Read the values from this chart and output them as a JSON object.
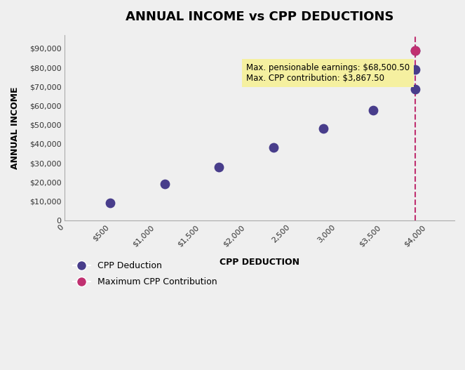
{
  "title": "ANNUAL INCOME vs CPP DEDUCTIONS",
  "xlabel": "CPP DEDUCTION",
  "ylabel": "ANNUAL INCOME",
  "background_color": "#efefef",
  "normal_x": [
    500,
    1100,
    1700,
    2300,
    2850,
    3400
  ],
  "normal_y": [
    9000,
    19000,
    28000,
    38000,
    48000,
    57500
  ],
  "max_line_x": [
    3867.5,
    3867.5,
    3867.5
  ],
  "max_line_y": [
    68500,
    79000,
    89000
  ],
  "max_pink_x": [
    3867.5
  ],
  "max_pink_y": [
    89000
  ],
  "max_contribution_x": 3867.5,
  "annotation_text_line1": "Max. pensionable earnings: $68,500.50",
  "annotation_text_line2": "Max. CPP contribution: $3,867.50",
  "annotation_box_color": "#f5f0a0",
  "dot_color": "#483d8b",
  "max_dot_color": "#c03070",
  "dashed_line_color": "#c03070",
  "xlim": [
    0,
    4300
  ],
  "ylim": [
    0,
    97000
  ],
  "xticks": [
    0,
    500,
    1000,
    1500,
    2000,
    2500,
    3000,
    3500,
    4000
  ],
  "xtick_labels": [
    "0",
    "$500",
    "$1,000",
    "$1,500",
    "$2,000",
    "2,500",
    "3,000",
    "$3,500",
    "$4,000"
  ],
  "yticks": [
    0,
    10000,
    20000,
    30000,
    40000,
    50000,
    60000,
    70000,
    80000,
    90000
  ],
  "ytick_labels": [
    "0",
    "$10,000",
    "$20,000",
    "$30,000",
    "$40,000",
    "$50,000",
    "$60,000",
    "$70,000",
    "$80,000",
    "$90,000"
  ],
  "legend_label_dot": "CPP Deduction",
  "legend_label_max": "Maximum CPP Contribution",
  "title_fontsize": 13,
  "axis_label_fontsize": 9,
  "tick_fontsize": 8,
  "dot_size": 80
}
